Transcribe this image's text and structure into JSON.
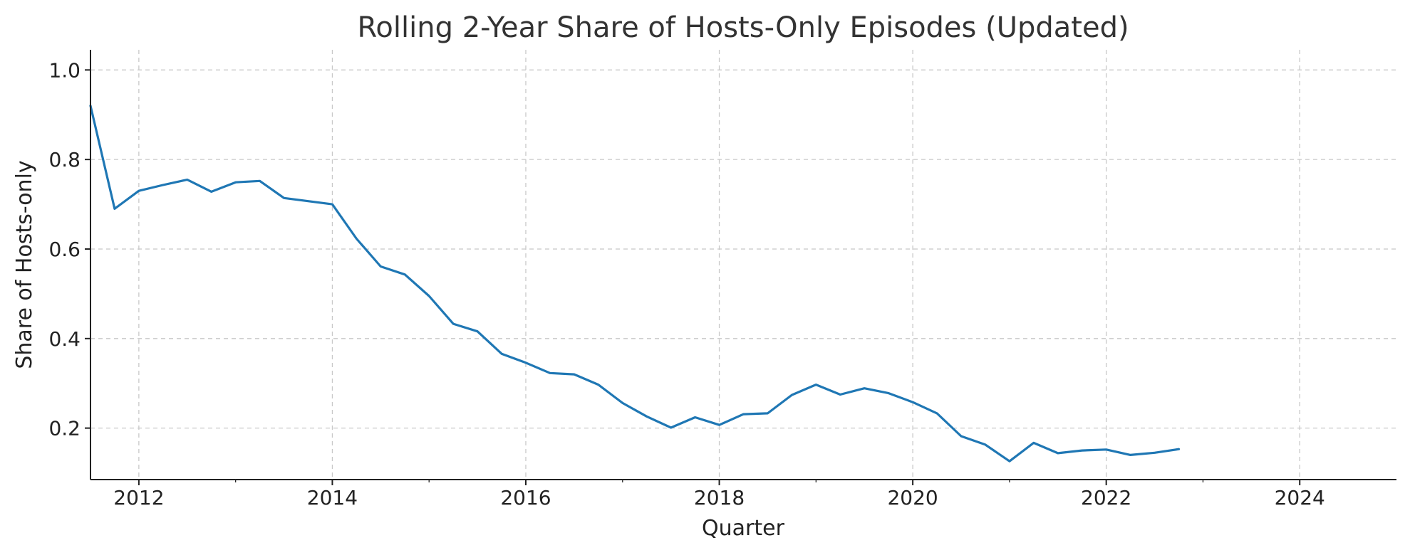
{
  "chart_data": {
    "type": "line",
    "title": "Rolling 2-Year Share of Hosts-Only Episodes (Updated)",
    "xlabel": "Quarter",
    "ylabel": "Share of Hosts-only",
    "xlim": [
      2011.5,
      2025.0
    ],
    "ylim": [
      0.085,
      1.045
    ],
    "x_ticks": [
      2012,
      2014,
      2016,
      2018,
      2020,
      2022,
      2024
    ],
    "x_tick_labels": [
      "2012",
      "2014",
      "2016",
      "2018",
      "2020",
      "2022",
      "2024"
    ],
    "x_minor_ticks": [
      2013,
      2015,
      2017,
      2019,
      2021,
      2023
    ],
    "y_ticks": [
      0.2,
      0.4,
      0.6,
      0.8,
      1.0
    ],
    "y_tick_labels": [
      "0.2",
      "0.4",
      "0.6",
      "0.8",
      "1.0"
    ],
    "grid": true,
    "legend": "none",
    "series": [
      {
        "color": "#1f77b4",
        "x": [
          2011.5,
          2011.75,
          2012.0,
          2012.25,
          2012.5,
          2012.75,
          2013.0,
          2013.25,
          2013.5,
          2013.75,
          2014.0,
          2014.25,
          2014.5,
          2014.75,
          2015.0,
          2015.25,
          2015.5,
          2015.75,
          2016.0,
          2016.25,
          2016.5,
          2016.75,
          2017.0,
          2017.25,
          2017.5,
          2017.75,
          2018.0,
          2018.25,
          2018.5,
          2018.75,
          2019.0,
          2019.25,
          2019.5,
          2019.75,
          2020.0,
          2020.25,
          2020.5,
          2020.75,
          2021.0,
          2021.25,
          2021.5,
          2021.75,
          2022.0,
          2022.25,
          2022.5,
          2022.75
        ],
        "values": [
          0.92,
          0.69,
          0.73,
          0.743,
          0.755,
          0.728,
          0.749,
          0.752,
          0.714,
          0.707,
          0.7,
          0.623,
          0.561,
          0.543,
          0.495,
          0.433,
          0.416,
          0.366,
          0.346,
          0.323,
          0.32,
          0.297,
          0.256,
          0.226,
          0.201,
          0.224,
          0.207,
          0.231,
          0.233,
          0.274,
          0.297,
          0.275,
          0.289,
          0.278,
          0.258,
          0.233,
          0.182,
          0.163,
          0.126,
          0.167,
          0.144,
          0.15,
          0.152,
          0.14,
          0.145,
          0.153
        ]
      }
    ]
  }
}
